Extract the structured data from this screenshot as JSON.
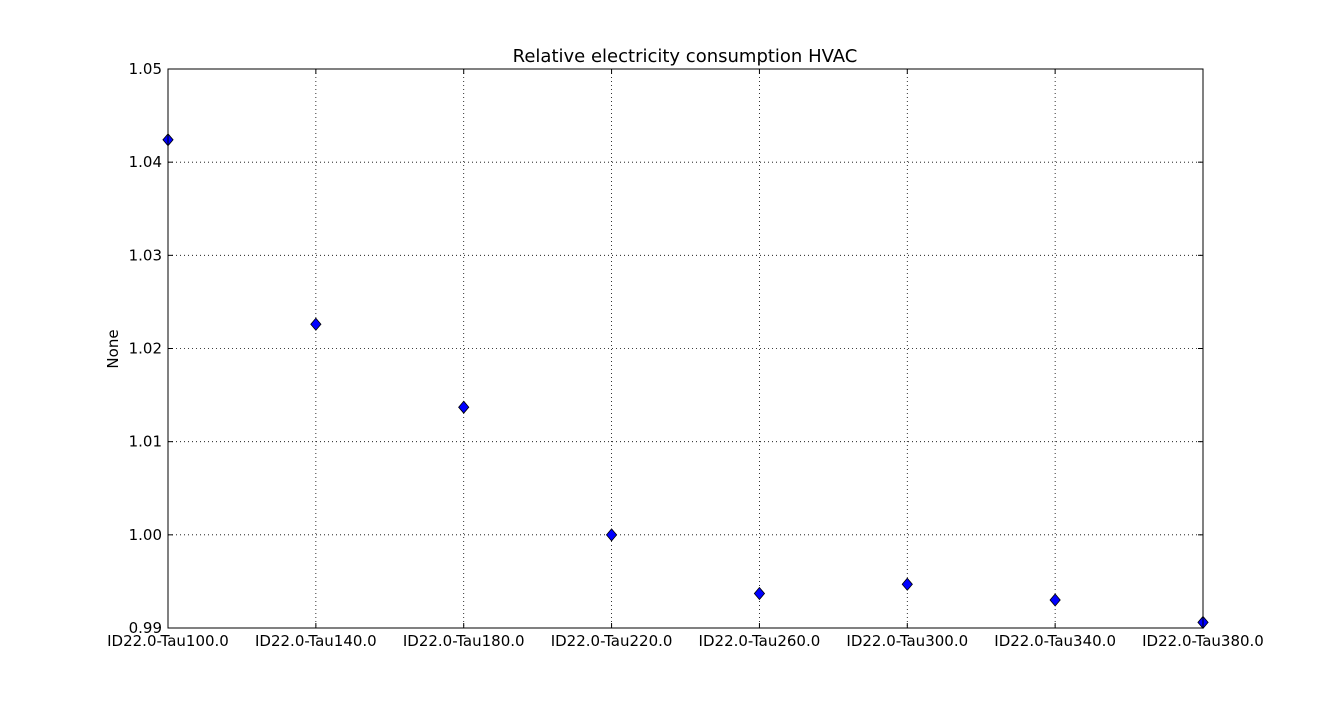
{
  "chart_data": {
    "type": "scatter",
    "title": "Relative electricity consumption HVAC",
    "xlabel": "",
    "ylabel": "None",
    "categories": [
      "ID22.0-Tau100.0",
      "ID22.0-Tau140.0",
      "ID22.0-Tau180.0",
      "ID22.0-Tau220.0",
      "ID22.0-Tau260.0",
      "ID22.0-Tau300.0",
      "ID22.0-Tau340.0",
      "ID22.0-Tau380.0"
    ],
    "values": [
      1.0424,
      1.0226,
      1.0137,
      1.0,
      0.9937,
      0.9947,
      0.993,
      0.9906
    ],
    "ylim": [
      0.99,
      1.05
    ],
    "yticks": [
      0.99,
      1.0,
      1.01,
      1.02,
      1.03,
      1.04,
      1.05
    ],
    "ytick_labels": [
      "0.99",
      "1.00",
      "1.01",
      "1.02",
      "1.03",
      "1.04",
      "1.05"
    ],
    "grid": true,
    "marker": "diamond",
    "marker_color": "#0000ff"
  }
}
